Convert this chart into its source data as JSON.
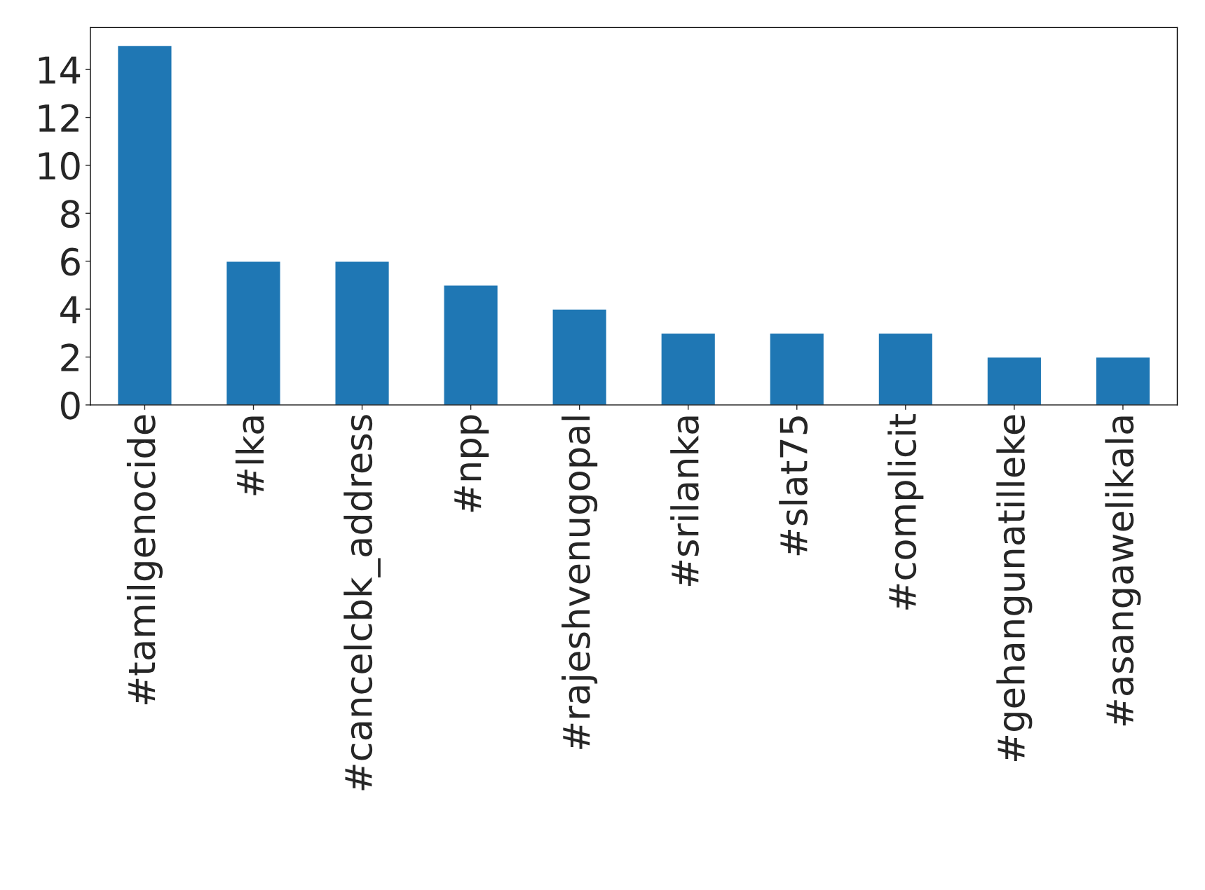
{
  "chart_data": {
    "type": "bar",
    "categories": [
      "#tamilgenocide",
      "#lka",
      "#cancelcbk_address",
      "#npp",
      "#rajeshvenugopal",
      "#srilanka",
      "#slat75",
      "#complicit",
      "#gehangunatilleke",
      "#asangawelikala"
    ],
    "values": [
      15,
      6,
      6,
      5,
      4,
      3,
      3,
      3,
      2,
      2
    ],
    "color": "#1f77b4",
    "ylim": [
      0,
      15.75
    ],
    "yticks": [
      0,
      2,
      4,
      6,
      8,
      10,
      12,
      14
    ],
    "grid": false,
    "legend": false
  }
}
